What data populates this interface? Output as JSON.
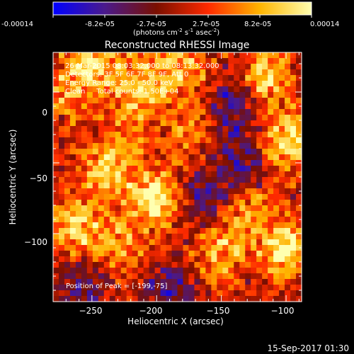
{
  "colorbar": {
    "ticks": [
      "-0.00014",
      "-8.2e-05",
      "-2.7e-05",
      "2.7e-05",
      "8.2e-05",
      "0.00014"
    ],
    "units_main": "(photons cm",
    "units_sup1": "-2",
    "units_mid": " s",
    "units_sup2": "-1",
    "units_end": " asec",
    "units_sup3": "-2",
    "units_close": ")"
  },
  "chart_data": {
    "type": "heatmap",
    "title": "Reconstructed RHESSI Image",
    "xlabel": "Heliocentric X (arcsec)",
    "ylabel": "Heliocentric Y (arcsec)",
    "xlim": [
      -280,
      -88
    ],
    "ylim": [
      -148,
      28
    ],
    "x_ticks": [
      -250,
      -200,
      -150,
      -100
    ],
    "y_ticks": [
      0,
      -50,
      -100
    ],
    "x_tick_labels": [
      "−250",
      "−200",
      "−150",
      "−100"
    ],
    "y_tick_labels": [
      "0",
      "−50",
      "−100"
    ],
    "colormap": [
      "#0000ff",
      "#4a1a8c",
      "#7a0f00",
      "#ff2a00",
      "#ffb400",
      "#ffffb0"
    ],
    "value_range": [
      -0.00014,
      0.00014
    ],
    "peak": [
      -199,
      -75
    ],
    "blobs": [
      {
        "x": -200,
        "y": -75,
        "amp": 0.00014
      },
      {
        "x": -240,
        "y": -58,
        "amp": 0.00011
      },
      {
        "x": -262,
        "y": -95,
        "amp": 0.00011
      },
      {
        "x": -228,
        "y": -110,
        "amp": 8e-05
      },
      {
        "x": -212,
        "y": 5,
        "amp": 0.0001
      },
      {
        "x": -250,
        "y": 20,
        "amp": 0.00011
      },
      {
        "x": -180,
        "y": 20,
        "amp": 9e-05
      },
      {
        "x": -115,
        "y": 10,
        "amp": 0.00011
      },
      {
        "x": -100,
        "y": -35,
        "amp": 0.00013
      },
      {
        "x": -100,
        "y": -110,
        "amp": 0.00013
      },
      {
        "x": -130,
        "y": -85,
        "amp": 8e-05
      },
      {
        "x": -150,
        "y": -115,
        "amp": 9e-05
      },
      {
        "x": -175,
        "y": -25,
        "amp": 7e-05
      },
      {
        "x": -225,
        "y": -30,
        "amp": 6e-05
      },
      {
        "x": -270,
        "y": 0,
        "amp": 7e-05
      },
      {
        "x": -140,
        "y": -10,
        "amp": -9e-05
      },
      {
        "x": -165,
        "y": -75,
        "amp": -8e-05
      },
      {
        "x": -255,
        "y": -135,
        "amp": -7e-05
      },
      {
        "x": -190,
        "y": -140,
        "amp": -8e-05
      },
      {
        "x": -135,
        "y": -50,
        "amp": -8e-05
      }
    ]
  },
  "annotations": {
    "time": "26-Mar-2015 08:03:32.000 to 08:13:32.000",
    "detectors": "Detectors: 3F 5F 6F 7F 8F 9F, Att 0",
    "energy": "Energy Range: 25.0 - 50.0 keV",
    "clean": "Clean     Total counts: 1.50E+04",
    "peak": "Position of Peak = [-199,-75]"
  },
  "footer": {
    "date": "15-Sep-2017 01:30"
  }
}
